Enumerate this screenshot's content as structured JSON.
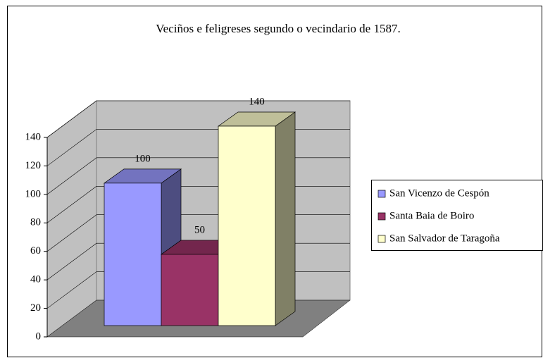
{
  "chart_data": {
    "type": "bar3d",
    "title": "Veciños e feligreses segundo o vecindario de 1587.",
    "series": [
      {
        "name": "San Vicenzo de Cespón",
        "color": "#9999ff",
        "values": [
          100
        ]
      },
      {
        "name": "Santa Baia de Boiro",
        "color": "#993366",
        "values": [
          50
        ]
      },
      {
        "name": "San Salvador de Taragoña",
        "color": "#ffffcc",
        "values": [
          140
        ]
      }
    ],
    "ylim": [
      0,
      140
    ],
    "yticks": [
      0,
      20,
      40,
      60,
      80,
      100,
      120,
      140
    ],
    "grid": true,
    "legend": "right"
  }
}
